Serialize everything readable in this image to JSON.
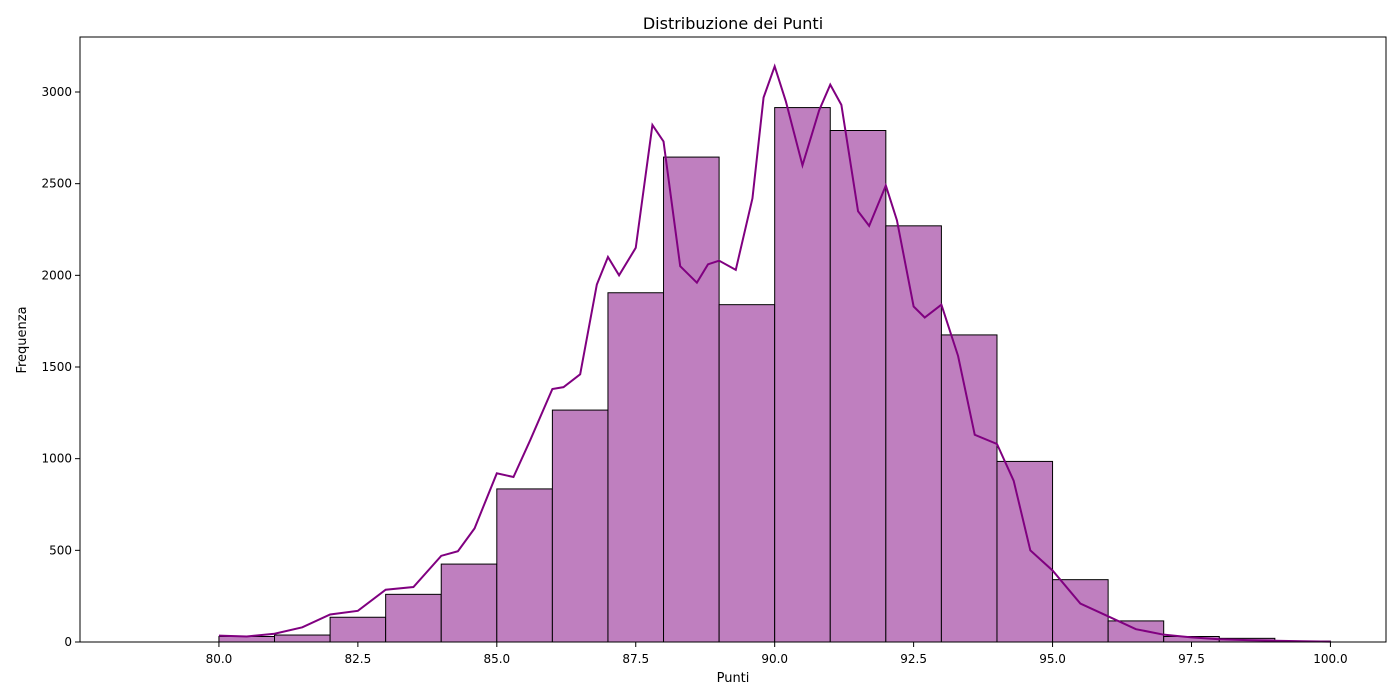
{
  "chart_data": {
    "type": "bar",
    "title": "Distribuzione dei Punti",
    "xlabel": "Punti",
    "ylabel": "Frequenza",
    "xlim": [
      77.5,
      101.0
    ],
    "ylim": [
      0,
      3300
    ],
    "xticks": [
      "80.0",
      "82.5",
      "85.0",
      "87.5",
      "90.0",
      "92.5",
      "95.0",
      "97.5",
      "100.0"
    ],
    "xtick_values": [
      80,
      82.5,
      85,
      87.5,
      90,
      92.5,
      95,
      97.5,
      100
    ],
    "yticks": [
      "0",
      "500",
      "1000",
      "1500",
      "2000",
      "2500",
      "3000"
    ],
    "ytick_values": [
      0,
      500,
      1000,
      1500,
      2000,
      2500,
      3000
    ],
    "bins": [
      {
        "x0": 80,
        "x1": 81,
        "value": 30
      },
      {
        "x0": 81,
        "x1": 82,
        "value": 38
      },
      {
        "x0": 82,
        "x1": 83,
        "value": 135
      },
      {
        "x0": 83,
        "x1": 84,
        "value": 260
      },
      {
        "x0": 84,
        "x1": 85,
        "value": 425
      },
      {
        "x0": 85,
        "x1": 86,
        "value": 835
      },
      {
        "x0": 86,
        "x1": 87,
        "value": 1265
      },
      {
        "x0": 87,
        "x1": 88,
        "value": 1905
      },
      {
        "x0": 88,
        "x1": 89,
        "value": 2645
      },
      {
        "x0": 89,
        "x1": 90,
        "value": 1840
      },
      {
        "x0": 90,
        "x1": 91,
        "value": 2915
      },
      {
        "x0": 91,
        "x1": 92,
        "value": 2790
      },
      {
        "x0": 92,
        "x1": 93,
        "value": 2270
      },
      {
        "x0": 93,
        "x1": 94,
        "value": 1675
      },
      {
        "x0": 94,
        "x1": 95,
        "value": 985
      },
      {
        "x0": 95,
        "x1": 96,
        "value": 340
      },
      {
        "x0": 96,
        "x1": 97,
        "value": 115
      },
      {
        "x0": 97,
        "x1": 98,
        "value": 30
      },
      {
        "x0": 98,
        "x1": 99,
        "value": 20
      },
      {
        "x0": 99,
        "x1": 100,
        "value": 5
      }
    ],
    "kde": {
      "x": [
        80.0,
        80.5,
        81.0,
        81.5,
        82.0,
        82.5,
        83.0,
        83.5,
        84.0,
        84.3,
        84.6,
        85.0,
        85.3,
        85.6,
        86.0,
        86.2,
        86.5,
        86.8,
        87.0,
        87.2,
        87.5,
        87.8,
        88.0,
        88.3,
        88.6,
        88.8,
        89.0,
        89.3,
        89.6,
        89.8,
        90.0,
        90.2,
        90.5,
        90.8,
        91.0,
        91.2,
        91.5,
        91.7,
        92.0,
        92.2,
        92.5,
        92.7,
        93.0,
        93.3,
        93.6,
        94.0,
        94.3,
        94.6,
        95.0,
        95.5,
        96.0,
        96.5,
        97.0,
        97.5,
        98.0,
        98.5,
        99.0,
        99.5,
        100.0
      ],
      "y": [
        35,
        30,
        45,
        80,
        150,
        170,
        285,
        300,
        470,
        495,
        620,
        920,
        900,
        1100,
        1380,
        1390,
        1460,
        1950,
        2100,
        2000,
        2150,
        2820,
        2730,
        2050,
        1960,
        2060,
        2080,
        2030,
        2420,
        2970,
        3140,
        2950,
        2600,
        2900,
        3040,
        2930,
        2350,
        2270,
        2490,
        2300,
        1830,
        1770,
        1840,
        1560,
        1130,
        1080,
        880,
        500,
        390,
        210,
        140,
        70,
        40,
        25,
        15,
        10,
        7,
        4,
        2
      ]
    },
    "colors": {
      "bar_fill": "#bf7fbf",
      "bar_edge": "#000000",
      "kde_line": "#800080"
    },
    "grid": false,
    "legend": "none"
  }
}
